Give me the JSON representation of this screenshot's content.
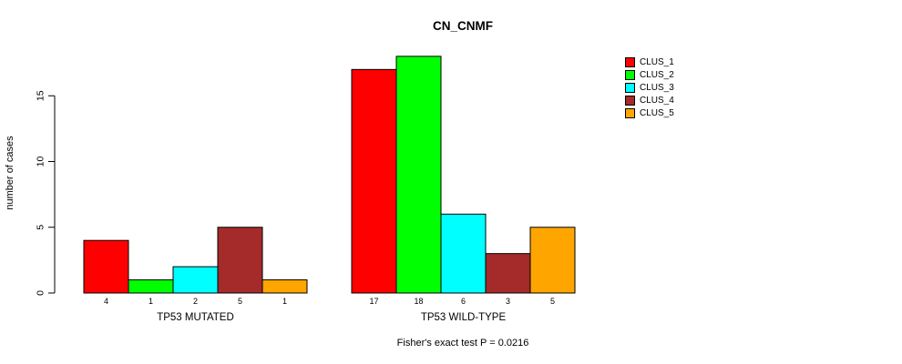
{
  "title": "CN_CNMF",
  "footer": "Fisher's exact test P = 0.0216",
  "chart_data": {
    "type": "bar",
    "title": "CN_CNMF",
    "xlabel": "",
    "ylabel": "number of cases",
    "ylim": [
      0,
      18.9
    ],
    "yticks": [
      0,
      5,
      10,
      15
    ],
    "grid": false,
    "legend_position": "right",
    "categories": [
      "TP53 MUTATED",
      "TP53 WILD-TYPE"
    ],
    "series": [
      {
        "name": "CLUS_1",
        "color": "#FF0000",
        "values": [
          4,
          17
        ]
      },
      {
        "name": "CLUS_2",
        "color": "#00FF00",
        "values": [
          1,
          18
        ]
      },
      {
        "name": "CLUS_3",
        "color": "#00FFFF",
        "values": [
          2,
          6
        ]
      },
      {
        "name": "CLUS_4",
        "color": "#A52A2A",
        "values": [
          5,
          3
        ]
      },
      {
        "name": "CLUS_5",
        "color": "#FFA500",
        "values": [
          1,
          5
        ]
      }
    ],
    "bar_value_labels_shown": true,
    "annotation": "Fisher's exact test P = 0.0216"
  }
}
